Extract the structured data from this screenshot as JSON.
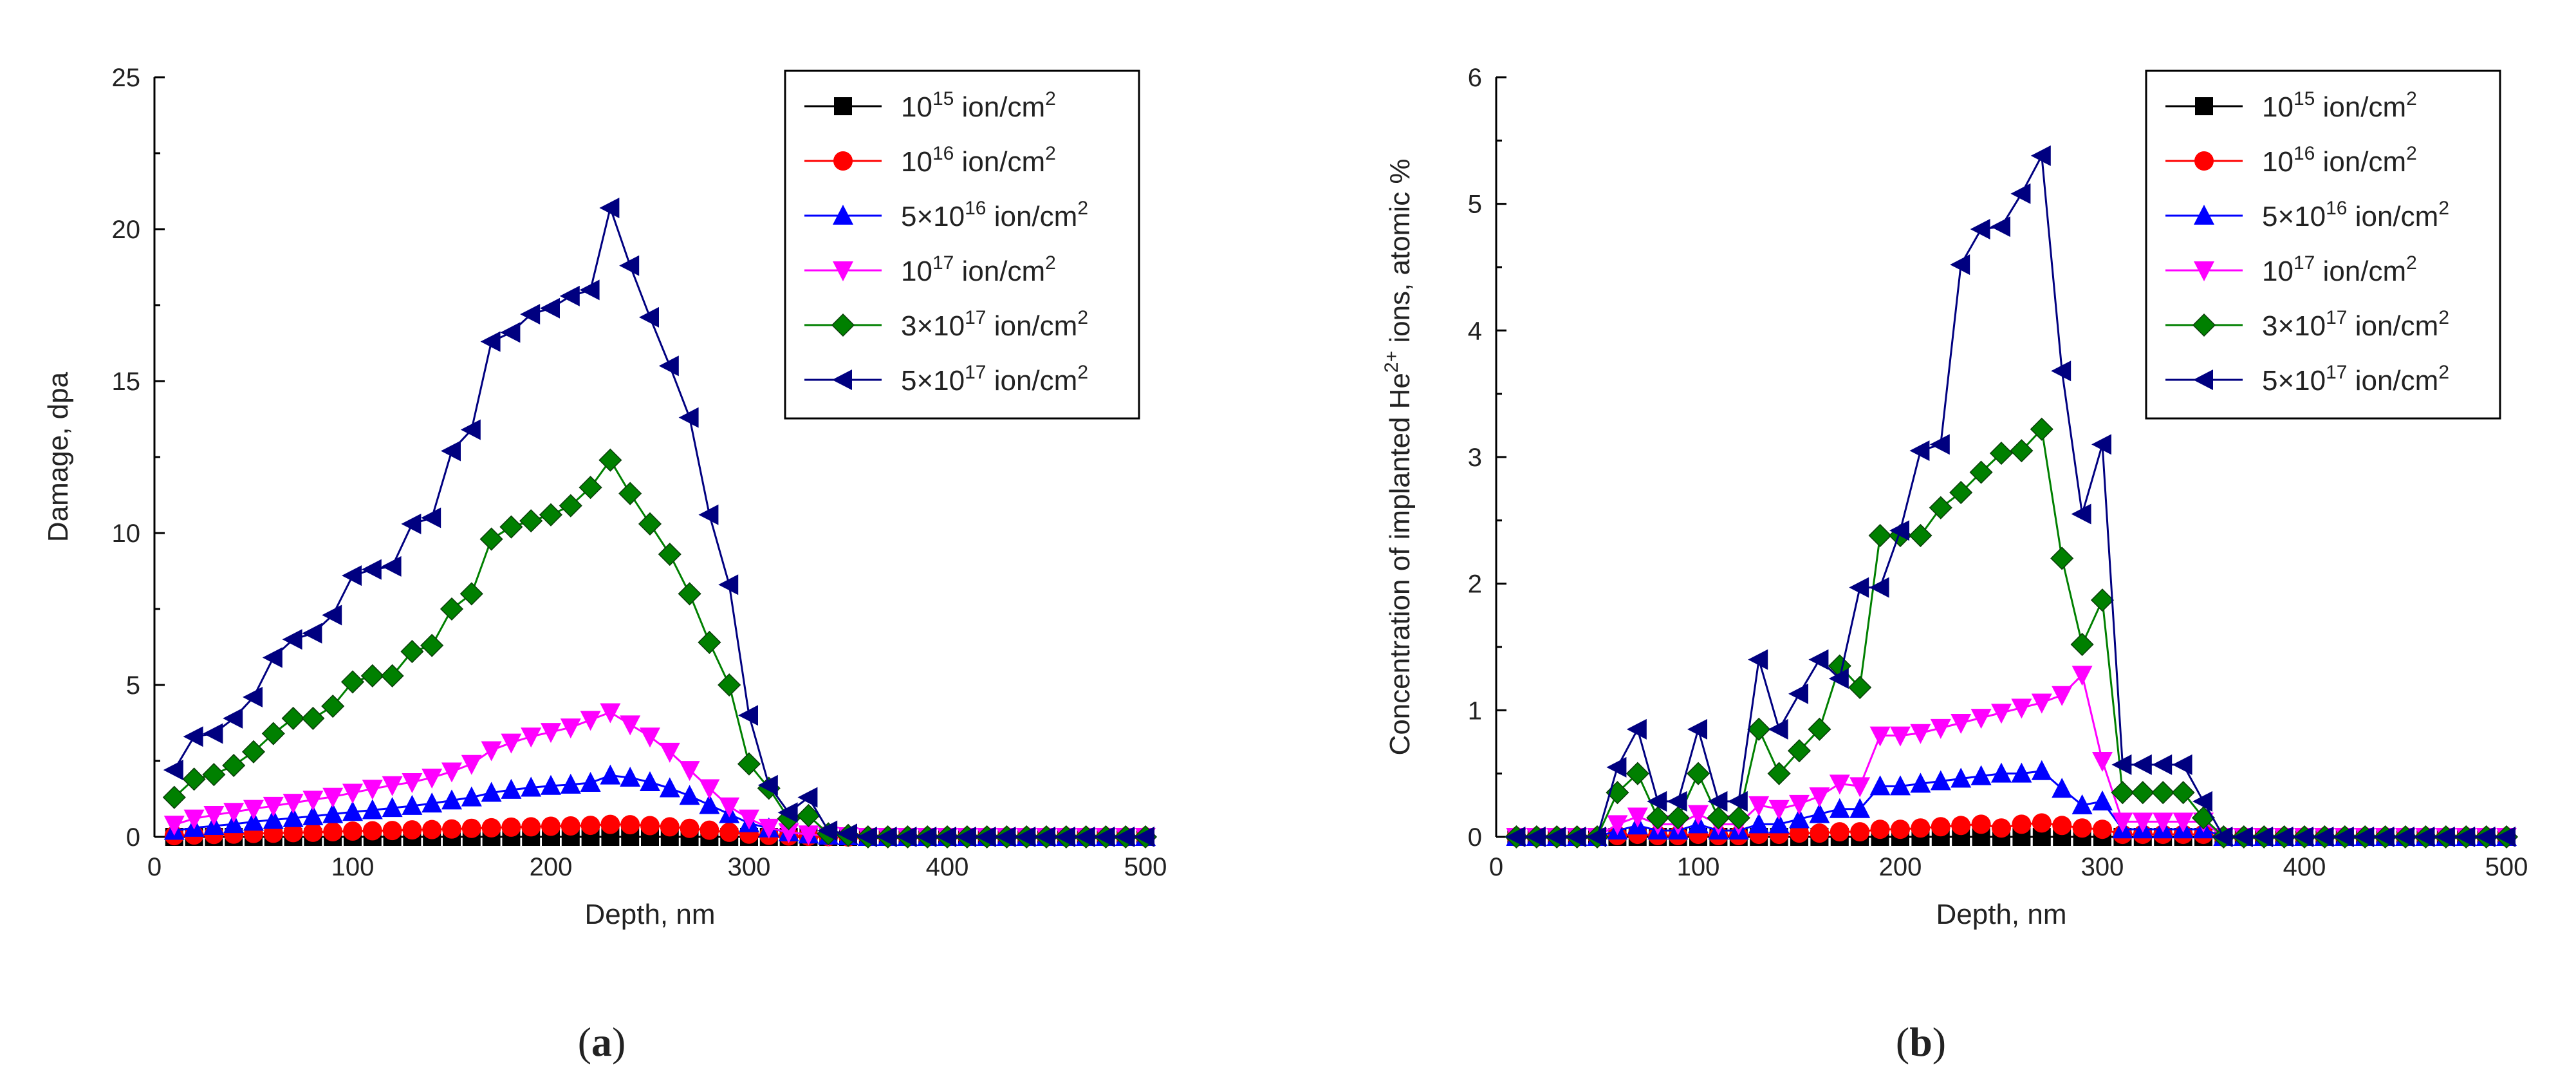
{
  "figure": {
    "panels": [
      {
        "label_open": "(",
        "label_letter": "a",
        "label_close": ")"
      },
      {
        "label_open": "(",
        "label_letter": "b",
        "label_close": ")"
      }
    ]
  },
  "chart_data": [
    {
      "type": "line",
      "title": "",
      "xlabel": "Depth, nm",
      "ylabel": "Damage, dpa",
      "xlim": [
        0,
        500
      ],
      "ylim": [
        0,
        25
      ],
      "xticks": [
        "0",
        "100",
        "200",
        "300",
        "400",
        "500"
      ],
      "yticks": [
        "0",
        "5",
        "10",
        "15",
        "20",
        "25"
      ],
      "grid": false,
      "legend_position": "top-right",
      "x": [
        10,
        20,
        30,
        40,
        50,
        60,
        70,
        80,
        90,
        100,
        110,
        120,
        130,
        140,
        150,
        160,
        170,
        180,
        190,
        200,
        210,
        220,
        230,
        240,
        250,
        260,
        270,
        280,
        290,
        300,
        310,
        320,
        330,
        340,
        350,
        360,
        370,
        380,
        390,
        400,
        410,
        420,
        430,
        440,
        450,
        460,
        470,
        480,
        490,
        500
      ],
      "series": [
        {
          "name": "10^15 ion/cm^2",
          "label_pre": "10",
          "label_sup": "15",
          "label_unit": " ion/cm",
          "label_unit_sup": "2",
          "color": "#000000",
          "marker": "square",
          "values": [
            0,
            0,
            0,
            0,
            0,
            0,
            0,
            0,
            0,
            0,
            0,
            0,
            0,
            0,
            0,
            0,
            0,
            0,
            0,
            0,
            0,
            0,
            0,
            0,
            0,
            0,
            0,
            0,
            0,
            0,
            0,
            0,
            0,
            0,
            0,
            0,
            0,
            0,
            0,
            0,
            0,
            0,
            0,
            0,
            0,
            0,
            0,
            0,
            0,
            0
          ]
        },
        {
          "name": "10^16 ion/cm^2",
          "label_pre": "10",
          "label_sup": "16",
          "label_unit": " ion/cm",
          "label_unit_sup": "2",
          "color": "#ff0000",
          "marker": "circle",
          "values": [
            0.04,
            0.06,
            0.08,
            0.09,
            0.11,
            0.12,
            0.14,
            0.15,
            0.17,
            0.19,
            0.2,
            0.21,
            0.23,
            0.24,
            0.26,
            0.28,
            0.3,
            0.32,
            0.33,
            0.35,
            0.36,
            0.38,
            0.41,
            0.4,
            0.37,
            0.33,
            0.28,
            0.22,
            0.15,
            0.09,
            0.05,
            0.03,
            0.02,
            0.01,
            0,
            0,
            0,
            0,
            0,
            0,
            0,
            0,
            0,
            0,
            0,
            0,
            0,
            0,
            0,
            0
          ]
        },
        {
          "name": "5×10^16 ion/cm^2",
          "label_pre": "5×10",
          "label_sup": "16",
          "label_unit": " ion/cm",
          "label_unit_sup": "2",
          "color": "#0000ff",
          "marker": "triangle-up",
          "values": [
            0.2,
            0.3,
            0.36,
            0.42,
            0.5,
            0.56,
            0.62,
            0.68,
            0.75,
            0.82,
            0.88,
            0.95,
            1.02,
            1.1,
            1.2,
            1.3,
            1.45,
            1.55,
            1.62,
            1.68,
            1.72,
            1.78,
            2.02,
            1.95,
            1.8,
            1.6,
            1.35,
            1.05,
            0.75,
            0.45,
            0.28,
            0.15,
            0.08,
            0.04,
            0.02,
            0,
            0,
            0,
            0,
            0,
            0,
            0,
            0,
            0,
            0,
            0,
            0,
            0,
            0,
            0
          ]
        },
        {
          "name": "10^17 ion/cm^2",
          "label_pre": "10",
          "label_sup": "17",
          "label_unit": " ion/cm",
          "label_unit_sup": "2",
          "color": "#ff00ff",
          "marker": "triangle-down",
          "values": [
            0.4,
            0.6,
            0.72,
            0.82,
            0.92,
            1.02,
            1.12,
            1.22,
            1.32,
            1.45,
            1.58,
            1.7,
            1.8,
            1.95,
            2.15,
            2.4,
            2.85,
            3.1,
            3.3,
            3.45,
            3.6,
            3.85,
            4.1,
            3.7,
            3.3,
            2.8,
            2.2,
            1.6,
            1.0,
            0.6,
            0.3,
            0.15,
            0.08,
            0.04,
            0.02,
            0,
            0,
            0,
            0,
            0,
            0,
            0,
            0,
            0,
            0,
            0,
            0,
            0,
            0,
            0
          ]
        },
        {
          "name": "3×10^17 ion/cm^2",
          "label_pre": "3×10",
          "label_sup": "17",
          "label_unit": " ion/cm",
          "label_unit_sup": "2",
          "color": "#008000",
          "marker": "diamond",
          "values": [
            1.3,
            1.9,
            2.05,
            2.35,
            2.8,
            3.4,
            3.9,
            3.9,
            4.3,
            5.1,
            5.3,
            5.3,
            6.1,
            6.3,
            7.5,
            8.0,
            9.8,
            10.2,
            10.4,
            10.6,
            10.9,
            11.5,
            12.4,
            11.3,
            10.3,
            9.3,
            8.0,
            6.4,
            5.0,
            2.4,
            1.6,
            0.6,
            0.7,
            0.1,
            0.05,
            0,
            0,
            0,
            0,
            0,
            0,
            0,
            0,
            0,
            0,
            0,
            0,
            0,
            0,
            0
          ]
        },
        {
          "name": "5×10^17 ion/cm^2",
          "label_pre": "5×10",
          "label_sup": "17",
          "label_unit": " ion/cm",
          "label_unit_sup": "2",
          "color": "#000080",
          "marker": "triangle-left",
          "values": [
            2.2,
            3.3,
            3.4,
            3.9,
            4.6,
            5.9,
            6.5,
            6.7,
            7.3,
            8.6,
            8.8,
            8.9,
            10.3,
            10.5,
            12.7,
            13.4,
            16.3,
            16.6,
            17.2,
            17.4,
            17.8,
            18.0,
            20.7,
            18.8,
            17.1,
            15.5,
            13.8,
            10.6,
            8.3,
            4.0,
            1.7,
            0.8,
            1.3,
            0.2,
            0.1,
            0,
            0,
            0,
            0,
            0,
            0,
            0,
            0,
            0,
            0,
            0,
            0,
            0,
            0,
            0
          ]
        }
      ]
    },
    {
      "type": "line",
      "title": "",
      "xlabel": "Depth, nm",
      "ylabel_pre": "Concentration of implanted He",
      "ylabel_sup": "2+",
      "ylabel_post": " ions, atomic %",
      "xlim": [
        0,
        500
      ],
      "ylim": [
        0,
        6
      ],
      "xticks": [
        "0",
        "100",
        "200",
        "300",
        "400",
        "500"
      ],
      "yticks": [
        "0",
        "1",
        "2",
        "3",
        "4",
        "5",
        "6"
      ],
      "grid": false,
      "legend_position": "top-right",
      "x": [
        10,
        20,
        30,
        40,
        50,
        60,
        70,
        80,
        90,
        100,
        110,
        120,
        130,
        140,
        150,
        160,
        170,
        180,
        190,
        200,
        210,
        220,
        230,
        240,
        250,
        260,
        270,
        280,
        290,
        300,
        310,
        320,
        330,
        340,
        350,
        360,
        370,
        380,
        390,
        400,
        410,
        420,
        430,
        440,
        450,
        460,
        470,
        480,
        490,
        500
      ],
      "series": [
        {
          "name": "10^15 ion/cm^2",
          "label_pre": "10",
          "label_sup": "15",
          "label_unit": " ion/cm",
          "label_unit_sup": "2",
          "color": "#000000",
          "marker": "square",
          "values": [
            0,
            0,
            0,
            0,
            0,
            0,
            0,
            0,
            0,
            0,
            0,
            0,
            0,
            0,
            0,
            0,
            0,
            0,
            0,
            0,
            0,
            0,
            0,
            0,
            0,
            0,
            0,
            0,
            0,
            0,
            0,
            0,
            0,
            0,
            0,
            0,
            0,
            0,
            0,
            0,
            0,
            0,
            0,
            0,
            0,
            0,
            0,
            0,
            0,
            0
          ]
        },
        {
          "name": "10^16 ion/cm^2",
          "label_pre": "10",
          "label_sup": "16",
          "label_unit": " ion/cm",
          "label_unit_sup": "2",
          "color": "#ff0000",
          "marker": "circle",
          "values": [
            0,
            0,
            0,
            0,
            0,
            0.01,
            0.02,
            0.01,
            0.01,
            0.02,
            0.01,
            0.01,
            0.02,
            0.02,
            0.03,
            0.03,
            0.04,
            0.04,
            0.06,
            0.06,
            0.07,
            0.08,
            0.09,
            0.1,
            0.07,
            0.1,
            0.11,
            0.09,
            0.07,
            0.06,
            0.02,
            0.02,
            0.02,
            0.02,
            0.02,
            0,
            0,
            0,
            0,
            0,
            0,
            0,
            0,
            0,
            0,
            0,
            0,
            0,
            0,
            0
          ]
        },
        {
          "name": "5×10^16 ion/cm^2",
          "label_pre": "5×10",
          "label_sup": "16",
          "label_unit": " ion/cm",
          "label_unit_sup": "2",
          "color": "#0000ff",
          "marker": "triangle-up",
          "values": [
            0,
            0,
            0,
            0,
            0,
            0.05,
            0.09,
            0.05,
            0.05,
            0.1,
            0.05,
            0.05,
            0.1,
            0.1,
            0.14,
            0.18,
            0.22,
            0.22,
            0.4,
            0.4,
            0.42,
            0.44,
            0.46,
            0.48,
            0.5,
            0.5,
            0.52,
            0.38,
            0.25,
            0.28,
            0.06,
            0.06,
            0.06,
            0.06,
            0.06,
            0,
            0,
            0,
            0,
            0,
            0,
            0,
            0,
            0,
            0,
            0,
            0,
            0,
            0,
            0
          ]
        },
        {
          "name": "10^17 ion/cm^2",
          "label_pre": "10",
          "label_sup": "17",
          "label_unit": " ion/cm",
          "label_unit_sup": "2",
          "color": "#ff00ff",
          "marker": "triangle-down",
          "values": [
            0,
            0,
            0,
            0,
            0,
            0.1,
            0.16,
            0.1,
            0.1,
            0.18,
            0.1,
            0.1,
            0.25,
            0.22,
            0.26,
            0.32,
            0.42,
            0.4,
            0.8,
            0.8,
            0.82,
            0.86,
            0.9,
            0.94,
            0.98,
            1.02,
            1.06,
            1.12,
            1.28,
            0.6,
            0.12,
            0.12,
            0.12,
            0.12,
            0.12,
            0,
            0,
            0,
            0,
            0,
            0,
            0,
            0,
            0,
            0,
            0,
            0,
            0,
            0,
            0
          ]
        },
        {
          "name": "3×10^17 ion/cm^2",
          "label_pre": "3×10",
          "label_sup": "17",
          "label_unit": " ion/cm",
          "label_unit_sup": "2",
          "color": "#008000",
          "marker": "diamond",
          "values": [
            0,
            0,
            0,
            0,
            0,
            0.35,
            0.5,
            0.15,
            0.15,
            0.5,
            0.15,
            0.15,
            0.85,
            0.5,
            0.68,
            0.85,
            1.35,
            1.18,
            2.38,
            2.38,
            2.38,
            2.6,
            2.72,
            2.88,
            3.03,
            3.05,
            3.22,
            2.2,
            1.52,
            1.87,
            0.35,
            0.35,
            0.35,
            0.35,
            0.15,
            0,
            0,
            0,
            0,
            0,
            0,
            0,
            0,
            0,
            0,
            0,
            0,
            0,
            0,
            0
          ]
        },
        {
          "name": "5×10^17 ion/cm^2",
          "label_pre": "5×10",
          "label_sup": "17",
          "label_unit": " ion/cm",
          "label_unit_sup": "2",
          "color": "#000080",
          "marker": "triangle-left",
          "values": [
            0,
            0,
            0,
            0,
            0,
            0.55,
            0.85,
            0.28,
            0.28,
            0.85,
            0.28,
            0.28,
            1.4,
            0.85,
            1.13,
            1.4,
            1.25,
            1.97,
            1.97,
            2.42,
            3.05,
            3.1,
            4.52,
            4.8,
            4.82,
            5.08,
            5.38,
            3.68,
            2.55,
            3.1,
            0.57,
            0.57,
            0.57,
            0.57,
            0.28,
            0,
            0,
            0,
            0,
            0,
            0,
            0,
            0,
            0,
            0,
            0,
            0,
            0,
            0,
            0
          ]
        }
      ]
    }
  ]
}
